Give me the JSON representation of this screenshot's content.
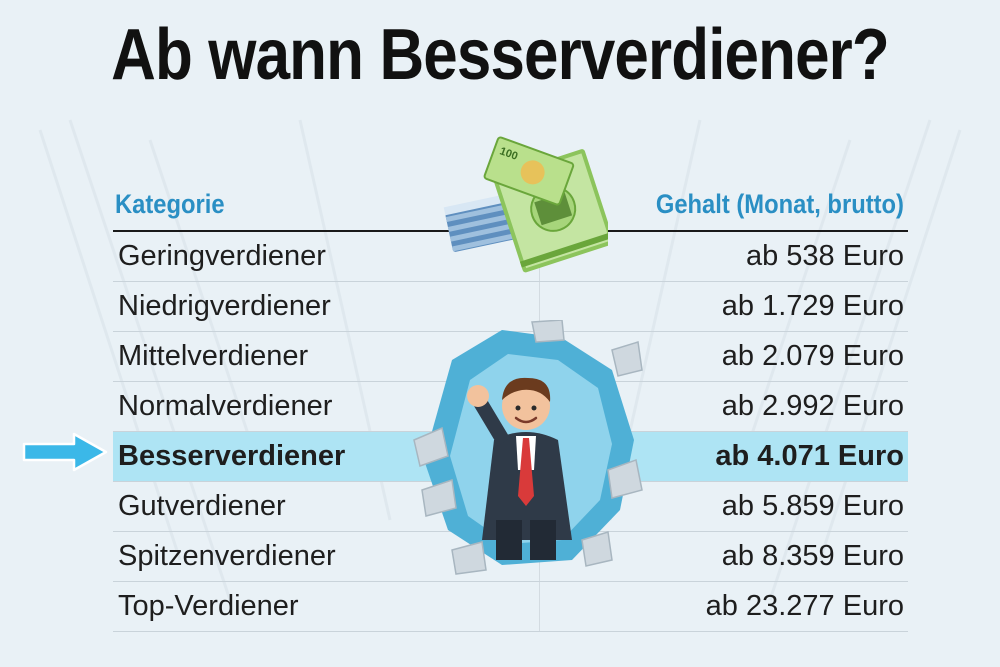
{
  "title": "Ab wann Besserverdiener?",
  "table": {
    "header": {
      "category": "Kategorie",
      "salary": "Gehalt (Monat, brutto)"
    },
    "rows": [
      {
        "category": "Geringverdiener",
        "salary": "ab 538 Euro"
      },
      {
        "category": "Niedrigverdiener",
        "salary": "ab 1.729 Euro"
      },
      {
        "category": "Mittelverdiener",
        "salary": "ab 2.079 Euro"
      },
      {
        "category": "Normalverdiener",
        "salary": "ab 2.992 Euro"
      },
      {
        "category": "Besserverdiener",
        "salary": "ab 4.071 Euro"
      },
      {
        "category": "Gutverdiener",
        "salary": "ab 5.859 Euro"
      },
      {
        "category": "Spitzenverdiener",
        "salary": "ab 8.359 Euro"
      },
      {
        "category": "Top-Verdiener",
        "salary": "ab 23.277 Euro"
      }
    ],
    "highlighted_category": "Besserverdiener"
  },
  "banknote_value": "100",
  "colors": {
    "header_text": "#2a8fc4",
    "highlight_row": "#aee4f4",
    "arrow": "#3bb8e8",
    "background": "#e9f1f6"
  },
  "icons": [
    "arrow-right-icon",
    "money-stack-icon",
    "businessman-breaking-wall-icon"
  ]
}
